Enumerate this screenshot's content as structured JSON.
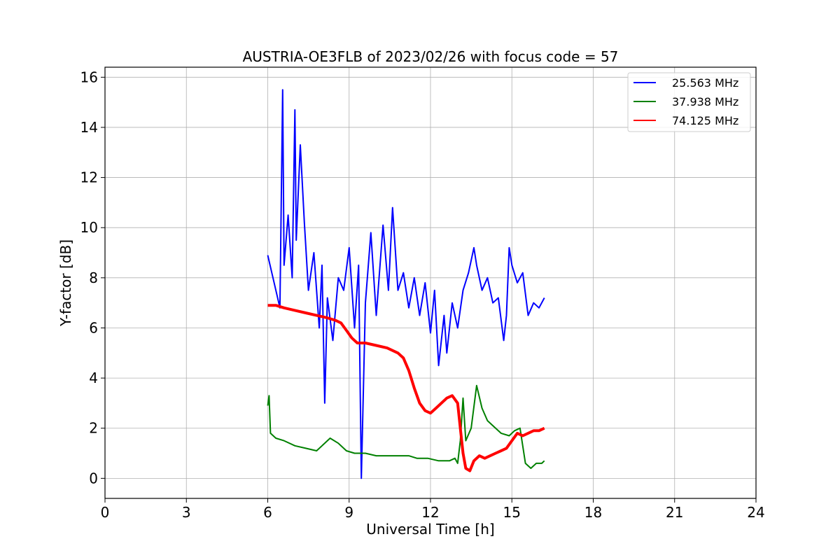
{
  "chart_data": {
    "type": "line",
    "title": "AUSTRIA-OE3FLB of 2023/02/26 with focus code = 57",
    "xlabel": "Universal Time [h]",
    "ylabel": "Y-factor [dB]",
    "xlim": [
      0,
      24
    ],
    "ylim": [
      -0.8,
      16.4
    ],
    "xticks": [
      0,
      3,
      6,
      9,
      12,
      15,
      18,
      21,
      24
    ],
    "yticks": [
      0,
      2,
      4,
      6,
      8,
      10,
      12,
      14,
      16
    ],
    "grid": true,
    "legend_position": "top-right",
    "series": [
      {
        "name": "25.563 MHz",
        "color": "#0000ff",
        "x": [
          6.0,
          6.15,
          6.3,
          6.45,
          6.55,
          6.6,
          6.75,
          6.9,
          7.0,
          7.05,
          7.2,
          7.35,
          7.5,
          7.7,
          7.9,
          8.0,
          8.1,
          8.2,
          8.4,
          8.6,
          8.8,
          9.0,
          9.2,
          9.35,
          9.45,
          9.6,
          9.8,
          10.0,
          10.25,
          10.45,
          10.6,
          10.8,
          11.0,
          11.2,
          11.4,
          11.6,
          11.8,
          12.0,
          12.15,
          12.3,
          12.5,
          12.6,
          12.8,
          13.0,
          13.2,
          13.4,
          13.6,
          13.7,
          13.9,
          14.1,
          14.3,
          14.5,
          14.7,
          14.8,
          14.9,
          15.0,
          15.2,
          15.4,
          15.6,
          15.8,
          16.0,
          16.2
        ],
        "y": [
          8.9,
          8.2,
          7.5,
          6.8,
          15.5,
          8.5,
          10.5,
          8.0,
          14.7,
          9.5,
          13.3,
          10.2,
          7.5,
          9.0,
          6.0,
          8.5,
          3.0,
          7.2,
          5.5,
          8.0,
          7.5,
          9.2,
          6.0,
          8.5,
          0.0,
          7.0,
          9.8,
          6.5,
          10.1,
          7.5,
          10.8,
          7.5,
          8.2,
          6.8,
          8.0,
          6.5,
          7.8,
          5.8,
          7.5,
          4.5,
          6.5,
          5.0,
          7.0,
          6.0,
          7.5,
          8.2,
          9.2,
          8.5,
          7.5,
          8.0,
          7.0,
          7.2,
          5.5,
          6.5,
          9.2,
          8.5,
          7.8,
          8.2,
          6.5,
          7.0,
          6.8,
          7.2
        ]
      },
      {
        "name": "37.938 MHz",
        "color": "#008000",
        "x": [
          6.0,
          6.05,
          6.1,
          6.3,
          6.6,
          7.0,
          7.4,
          7.8,
          8.0,
          8.3,
          8.6,
          8.9,
          9.2,
          9.6,
          10.0,
          10.4,
          10.8,
          11.2,
          11.5,
          11.9,
          12.3,
          12.7,
          12.9,
          13.0,
          13.1,
          13.2,
          13.3,
          13.5,
          13.7,
          13.9,
          14.1,
          14.3,
          14.6,
          14.9,
          15.1,
          15.3,
          15.5,
          15.7,
          15.9,
          16.1,
          16.2
        ],
        "y": [
          2.9,
          3.3,
          1.8,
          1.6,
          1.5,
          1.3,
          1.2,
          1.1,
          1.3,
          1.6,
          1.4,
          1.1,
          1.0,
          1.0,
          0.9,
          0.9,
          0.9,
          0.9,
          0.8,
          0.8,
          0.7,
          0.7,
          0.8,
          0.6,
          1.5,
          3.2,
          1.5,
          2.0,
          3.7,
          2.8,
          2.3,
          2.1,
          1.8,
          1.7,
          1.9,
          2.0,
          0.6,
          0.4,
          0.6,
          0.6,
          0.7
        ]
      },
      {
        "name": "74.125 MHz",
        "color": "#ff0000",
        "x": [
          6.0,
          6.3,
          6.6,
          7.0,
          7.4,
          7.8,
          8.2,
          8.5,
          8.7,
          8.9,
          9.1,
          9.3,
          9.6,
          10.0,
          10.4,
          10.8,
          11.0,
          11.2,
          11.4,
          11.6,
          11.8,
          12.0,
          12.2,
          12.4,
          12.6,
          12.8,
          13.0,
          13.1,
          13.2,
          13.3,
          13.45,
          13.6,
          13.8,
          14.0,
          14.2,
          14.4,
          14.6,
          14.8,
          15.0,
          15.2,
          15.4,
          15.6,
          15.8,
          16.0,
          16.2
        ],
        "y": [
          6.9,
          6.9,
          6.8,
          6.7,
          6.6,
          6.5,
          6.4,
          6.3,
          6.2,
          5.9,
          5.6,
          5.4,
          5.4,
          5.3,
          5.2,
          5.0,
          4.8,
          4.3,
          3.6,
          3.0,
          2.7,
          2.6,
          2.8,
          3.0,
          3.2,
          3.3,
          3.0,
          2.0,
          1.0,
          0.4,
          0.3,
          0.7,
          0.9,
          0.8,
          0.9,
          1.0,
          1.1,
          1.2,
          1.5,
          1.8,
          1.7,
          1.8,
          1.9,
          1.9,
          2.0
        ]
      }
    ]
  }
}
